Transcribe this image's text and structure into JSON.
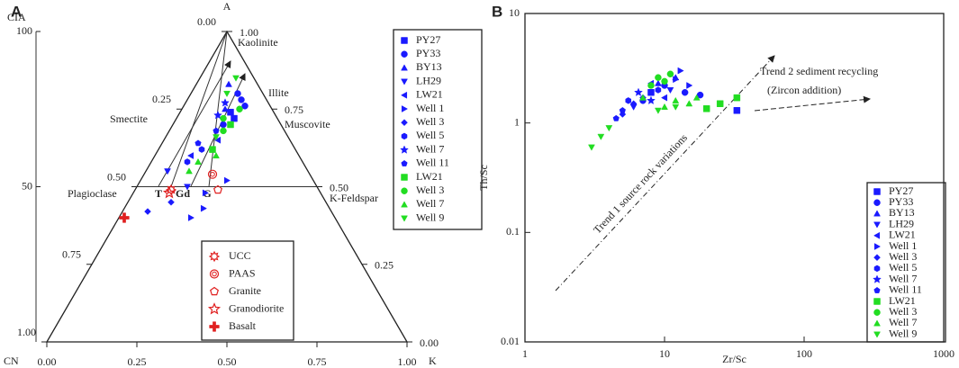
{
  "chart_data": [
    {
      "type": "ternary",
      "panel_label": "A",
      "corner_labels": {
        "top": "A",
        "left": "CN",
        "right": "K"
      },
      "cia_label": "CIA",
      "cialim": [
        0,
        100
      ],
      "ciaticks": [
        100,
        50
      ],
      "cn_ticks": [
        {
          "value": 0,
          "label": "0.00"
        },
        0.25,
        {
          "value": 0.5,
          "label": "0.50"
        },
        0.75,
        {
          "value": 1,
          "label": "1.00"
        }
      ],
      "a_ticks": [
        {
          "value": 0,
          "label": "0.00"
        },
        0.25,
        {
          "value": 0.5,
          "label": "0.50"
        },
        0.75,
        {
          "value": 1,
          "label": "1.00"
        }
      ],
      "k_ticks": [
        {
          "value": 0,
          "label": "0.00"
        },
        0.25,
        {
          "value": 0.5,
          "label": "0.50"
        },
        0.75,
        {
          "value": 1,
          "label": "1.00"
        }
      ],
      "annotations": [
        "Kaolinite",
        "Illite",
        "Muscovite",
        "Smectite",
        "Plagioclase",
        "K-Feldspar",
        "T",
        "Gd",
        "G"
      ],
      "series": [
        {
          "name": "PY27",
          "color": "#1a1aff",
          "marker": "square",
          "a": [
            0.74,
            0.72
          ],
          "k": [
            0.14,
            0.16
          ]
        },
        {
          "name": "PY33",
          "color": "#1a1aff",
          "marker": "circle",
          "a": [
            0.8,
            0.78,
            0.76,
            0.7
          ],
          "k": [
            0.13,
            0.15,
            0.17,
            0.14
          ]
        },
        {
          "name": "BY13",
          "color": "#1a1aff",
          "marker": "triangle-up",
          "a": [
            0.83,
            0.75
          ],
          "k": [
            0.09,
            0.12
          ]
        },
        {
          "name": "LH29",
          "color": "#1a1aff",
          "marker": "triangle-down",
          "a": [
            0.55,
            0.5
          ],
          "k": [
            0.06,
            0.14
          ]
        },
        {
          "name": "LW21",
          "color": "#1a1aff",
          "marker": "triangle-left",
          "a": [
            0.6,
            0.65
          ],
          "k": [
            0.1,
            0.15
          ]
        },
        {
          "name": "Well 1",
          "color": "#1a1aff",
          "marker": "triangle-right",
          "a": [
            0.48,
            0.43,
            0.52,
            0.4
          ],
          "k": [
            0.2,
            0.22,
            0.24,
            0.2
          ]
        },
        {
          "name": "Well 3",
          "color": "#1a1aff",
          "marker": "diamond",
          "a": [
            0.42,
            0.45
          ],
          "k": [
            0.07,
            0.12
          ]
        },
        {
          "name": "Well 5",
          "color": "#1a1aff",
          "marker": "hexagon",
          "a": [
            0.62,
            0.58
          ],
          "k": [
            0.12,
            0.1
          ]
        },
        {
          "name": "Well 7",
          "color": "#1a1aff",
          "marker": "star",
          "a": [
            0.77,
            0.73
          ],
          "k": [
            0.11,
            0.11
          ]
        },
        {
          "name": "Well 11",
          "color": "#1a1aff",
          "marker": "pentagon",
          "a": [
            0.68,
            0.64
          ],
          "k": [
            0.13,
            0.1
          ]
        },
        {
          "name": "LW21",
          "color": "#22dd22",
          "marker": "square",
          "a": [
            0.62,
            0.7
          ],
          "k": [
            0.15,
            0.16
          ]
        },
        {
          "name": "Well 3",
          "color": "#22dd22",
          "marker": "circle",
          "a": [
            0.72,
            0.68,
            0.75
          ],
          "k": [
            0.13,
            0.15,
            0.16
          ]
        },
        {
          "name": "Well 7",
          "color": "#22dd22",
          "marker": "triangle-up",
          "a": [
            0.58,
            0.6,
            0.55
          ],
          "k": [
            0.13,
            0.17,
            0.12
          ]
        },
        {
          "name": "Well 9",
          "color": "#22dd22",
          "marker": "triangle-down",
          "a": [
            0.85,
            0.8,
            0.66
          ],
          "k": [
            0.1,
            0.1,
            0.14
          ]
        }
      ],
      "references": [
        {
          "name": "UCC",
          "color": "#e02020",
          "marker": "gear",
          "a": 0.49,
          "k": 0.1
        },
        {
          "name": "PAAS",
          "color": "#e02020",
          "marker": "ring",
          "a": 0.54,
          "k": 0.19
        },
        {
          "name": "Granite",
          "color": "#e02020",
          "marker": "pentagon-open",
          "a": 0.49,
          "k": 0.23
        },
        {
          "name": "Granodiorite",
          "color": "#e02020",
          "marker": "star-open",
          "a": 0.48,
          "k": 0.1
        },
        {
          "name": "Basalt",
          "color": "#e02020",
          "marker": "cross",
          "a": 0.4,
          "k": 0.015
        }
      ]
    },
    {
      "type": "scatter",
      "panel_label": "B",
      "xlabel": "Zr/Sc",
      "ylabel": "Th/Sc",
      "xscale": "log",
      "yscale": "log",
      "xlim": [
        1,
        1000
      ],
      "ylim": [
        0.01,
        10
      ],
      "xticks": [
        1,
        10,
        100,
        1000
      ],
      "yticks": [
        0.01,
        0.1,
        1,
        10
      ],
      "annotations": [
        "Trend 1   source rock variations",
        "Trend 2   sediment recycling",
        "(Zircon addition)"
      ],
      "series": [
        {
          "name": "PY27",
          "color": "#1a1aff",
          "marker": "square",
          "x": [
            33,
            8
          ],
          "values": [
            1.3,
            1.9
          ]
        },
        {
          "name": "PY33",
          "color": "#1a1aff",
          "marker": "circle",
          "x": [
            10,
            14,
            18,
            7
          ],
          "values": [
            2.2,
            1.9,
            1.8,
            1.6
          ]
        },
        {
          "name": "BY13",
          "color": "#1a1aff",
          "marker": "triangle-up",
          "x": [
            12,
            9
          ],
          "values": [
            2.6,
            2.3
          ]
        },
        {
          "name": "LH29",
          "color": "#1a1aff",
          "marker": "triangle-down",
          "x": [
            11,
            6
          ],
          "values": [
            2.0,
            1.4
          ]
        },
        {
          "name": "LW21",
          "color": "#1a1aff",
          "marker": "triangle-left",
          "x": [
            8,
            10
          ],
          "values": [
            2.3,
            1.7
          ]
        },
        {
          "name": "Well 1",
          "color": "#1a1aff",
          "marker": "triangle-right",
          "x": [
            13,
            12,
            15
          ],
          "values": [
            3.0,
            2.5,
            2.2
          ]
        },
        {
          "name": "Well 3",
          "color": "#1a1aff",
          "marker": "diamond",
          "x": [
            5,
            6,
            7
          ],
          "values": [
            1.2,
            1.5,
            1.7
          ]
        },
        {
          "name": "Well 5",
          "color": "#1a1aff",
          "marker": "hexagon",
          "x": [
            9,
            5.5
          ],
          "values": [
            2.0,
            1.6
          ]
        },
        {
          "name": "Well 7",
          "color": "#1a1aff",
          "marker": "star",
          "x": [
            6.5,
            8
          ],
          "values": [
            1.9,
            1.6
          ]
        },
        {
          "name": "Well 11",
          "color": "#1a1aff",
          "marker": "pentagon",
          "x": [
            5,
            4.5
          ],
          "values": [
            1.3,
            1.1
          ]
        },
        {
          "name": "LW21",
          "color": "#22dd22",
          "marker": "square",
          "x": [
            33,
            20,
            25
          ],
          "values": [
            1.7,
            1.35,
            1.5
          ]
        },
        {
          "name": "Well 3",
          "color": "#22dd22",
          "marker": "circle",
          "x": [
            9,
            10,
            11,
            8
          ],
          "values": [
            2.6,
            2.4,
            2.8,
            2.2
          ]
        },
        {
          "name": "Well 7",
          "color": "#22dd22",
          "marker": "triangle-up",
          "x": [
            7,
            12,
            15,
            10,
            17
          ],
          "values": [
            1.7,
            1.6,
            1.5,
            1.4,
            1.7
          ]
        },
        {
          "name": "Well 9",
          "color": "#22dd22",
          "marker": "triangle-down",
          "x": [
            3,
            3.5,
            4,
            9,
            12
          ],
          "values": [
            0.6,
            0.75,
            0.9,
            1.3,
            1.4
          ]
        }
      ]
    }
  ]
}
